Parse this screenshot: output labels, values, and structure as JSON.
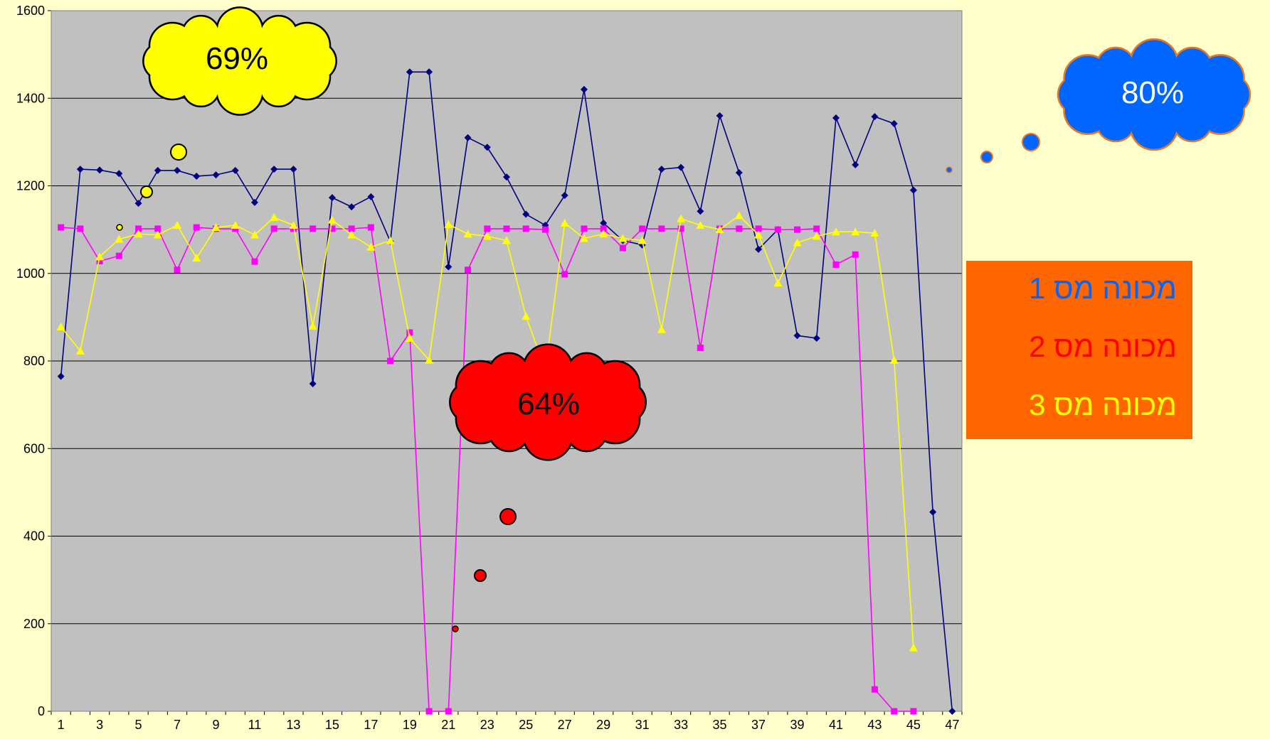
{
  "chart_data": {
    "type": "line",
    "x": [
      1,
      2,
      3,
      4,
      5,
      6,
      7,
      8,
      9,
      10,
      11,
      12,
      13,
      14,
      15,
      16,
      17,
      18,
      19,
      20,
      21,
      22,
      23,
      24,
      25,
      26,
      27,
      28,
      29,
      30,
      31,
      32,
      33,
      34,
      35,
      36,
      37,
      38,
      39,
      40,
      41,
      42,
      43,
      44,
      45,
      46,
      47
    ],
    "xticks": [
      "1",
      "3",
      "5",
      "7",
      "9",
      "11",
      "13",
      "15",
      "17",
      "19",
      "21",
      "23",
      "25",
      "27",
      "29",
      "31",
      "33",
      "35",
      "37",
      "39",
      "41",
      "43",
      "45",
      "47"
    ],
    "ylim": [
      0,
      1600
    ],
    "yticks": [
      "0",
      "200",
      "400",
      "600",
      "800",
      "1000",
      "1200",
      "1400",
      "1600"
    ],
    "grid": "horizontal",
    "series": [
      {
        "name": "מכונה מס 1",
        "color": "#000080",
        "marker": "diamond",
        "values": [
          765,
          1238,
          1236,
          1228,
          1160,
          1235,
          1235,
          1222,
          1225,
          1235,
          1162,
          1238,
          1238,
          748,
          1173,
          1152,
          1175,
          1073,
          1460,
          1460,
          1015,
          1310,
          1288,
          1220,
          1135,
          1110,
          1178,
          1420,
          1115,
          1075,
          1065,
          1238,
          1242,
          1142,
          1360,
          1230,
          1055,
          1100,
          858,
          852,
          1355,
          1248,
          1358,
          1342,
          1190,
          455,
          0
        ]
      },
      {
        "name": "מכונה מס 2",
        "color": "#FF00FF",
        "marker": "square",
        "values": [
          1105,
          1102,
          1028,
          1040,
          1102,
          1102,
          1008,
          1105,
          1102,
          1102,
          1027,
          1102,
          1102,
          1102,
          1102,
          1102,
          1105,
          800,
          865,
          0,
          0,
          1008,
          1102,
          1102,
          1102,
          1100,
          998,
          1102,
          1102,
          1058,
          1102,
          1102,
          1102,
          830,
          1102,
          1102,
          1102,
          1100,
          1100,
          1102,
          1020,
          1043,
          50,
          0,
          0,
          null,
          null
        ]
      },
      {
        "name": "מכונה מס 3",
        "color": "#FFFF00",
        "marker": "triangle",
        "values": [
          878,
          823,
          1038,
          1078,
          1090,
          1088,
          1110,
          1035,
          1105,
          1110,
          1088,
          1128,
          1110,
          880,
          1122,
          1088,
          1060,
          1075,
          852,
          802,
          1112,
          1090,
          1085,
          1075,
          902,
          780,
          1115,
          1080,
          1090,
          1080,
          1075,
          872,
          1125,
          1110,
          1100,
          1132,
          1088,
          978,
          1070,
          1085,
          1095,
          1095,
          1092,
          802,
          145,
          null,
          null
        ]
      }
    ]
  },
  "clouds": [
    {
      "label": "69%",
      "fill": "#FFFF00",
      "text_color": "#000000"
    },
    {
      "label": "64%",
      "fill": "#FF0000",
      "text_color": "#000000"
    },
    {
      "label": "80%",
      "fill": "#0066FF",
      "text_color": "#FFFFFF"
    }
  ],
  "legend": {
    "background": "#FF6600",
    "items": [
      {
        "label": "מכונה מס 1",
        "color": "#0066FF"
      },
      {
        "label": "מכונה מס 2",
        "color": "#FF0000"
      },
      {
        "label": "מכונה מס 3",
        "color": "#FFFF00"
      }
    ]
  }
}
